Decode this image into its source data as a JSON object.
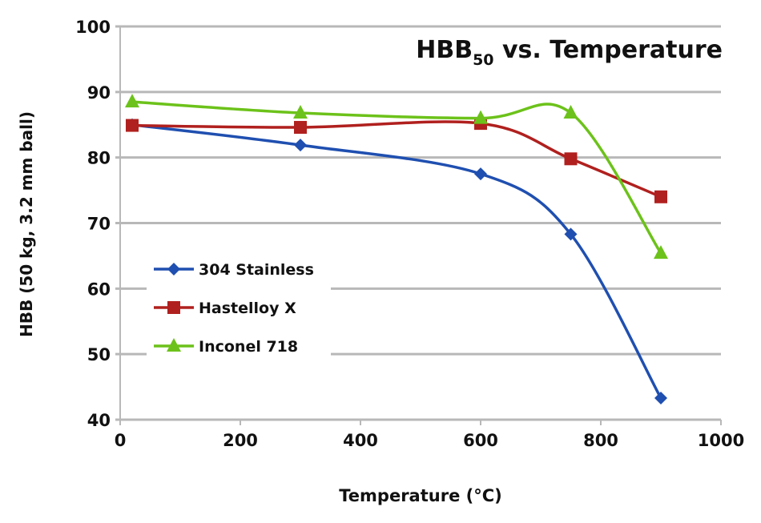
{
  "chart_data": {
    "type": "line",
    "title": "HBB",
    "title_subscript": "50",
    "title_suffix": " vs. Temperature",
    "xlabel": "Temperature (°C)",
    "ylabel": "HBB (50 kg, 3.2 mm ball)",
    "xlim": [
      0,
      1000
    ],
    "ylim": [
      40,
      100
    ],
    "xticks": [
      0,
      200,
      400,
      600,
      800,
      1000
    ],
    "yticks": [
      40,
      50,
      60,
      70,
      80,
      90,
      100
    ],
    "grid": "horizontal",
    "legend_position": "left-middle",
    "smoothed": true,
    "series": [
      {
        "name": "304 Stainless",
        "color": "#1f4fb0",
        "marker": "diamond",
        "x": [
          20,
          300,
          600,
          750,
          900
        ],
        "y": [
          85,
          81.9,
          77.5,
          68.3,
          43.3
        ]
      },
      {
        "name": "Hastelloy X",
        "color": "#b0201e",
        "marker": "square",
        "x": [
          20,
          300,
          600,
          750,
          900
        ],
        "y": [
          84.9,
          84.6,
          85.2,
          79.8,
          74
        ]
      },
      {
        "name": "Inconel 718",
        "color": "#6cc21a",
        "marker": "triangle",
        "x": [
          20,
          300,
          600,
          750,
          900
        ],
        "y": [
          88.5,
          86.8,
          86,
          86.8,
          65.4
        ]
      }
    ]
  }
}
